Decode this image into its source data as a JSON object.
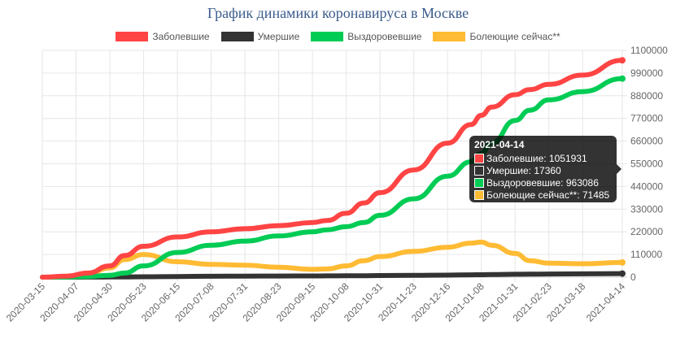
{
  "chart_data": {
    "type": "line",
    "title": "График динамики коронавируса в Москве",
    "x_tick_labels": [
      "2020-03-15",
      "2020-04-07",
      "2020-04-30",
      "2020-05-23",
      "2020-06-15",
      "2020-07-08",
      "2020-07-31",
      "2020-08-23",
      "2020-09-15",
      "2020-10-08",
      "2020-10-31",
      "2020-11-23",
      "2020-12-16",
      "2021-01-08",
      "2021-01-31",
      "2021-02-23",
      "2021-03-18",
      "2021-04-14"
    ],
    "y_tick_labels": [
      "0",
      "110000",
      "220000",
      "330000",
      "440000",
      "550000",
      "660000",
      "770000",
      "880000",
      "990000",
      "1100000"
    ],
    "ylim": [
      0,
      1100000
    ],
    "y_axis_position": "right",
    "grid": true,
    "legend_position": "top",
    "x_dates": [
      "2020-03-15",
      "2020-04-01",
      "2020-04-15",
      "2020-04-30",
      "2020-05-10",
      "2020-05-23",
      "2020-06-15",
      "2020-07-08",
      "2020-07-31",
      "2020-08-23",
      "2020-09-15",
      "2020-09-25",
      "2020-10-08",
      "2020-10-20",
      "2020-10-31",
      "2020-11-23",
      "2020-12-16",
      "2021-01-01",
      "2021-01-08",
      "2021-01-15",
      "2021-01-31",
      "2021-02-10",
      "2021-02-23",
      "2021-03-18",
      "2021-04-14"
    ],
    "series": [
      {
        "name": "Заболевшие",
        "color": "#ff4444",
        "values": [
          0,
          5000,
          20000,
          55000,
          105000,
          150000,
          195000,
          220000,
          235000,
          250000,
          265000,
          275000,
          310000,
          360000,
          410000,
          520000,
          650000,
          740000,
          785000,
          825000,
          885000,
          910000,
          935000,
          980000,
          1051931
        ]
      },
      {
        "name": "Умершие",
        "color": "#333333",
        "values": [
          0,
          20,
          200,
          700,
          1200,
          2000,
          3200,
          4500,
          5000,
          5500,
          6000,
          6300,
          6700,
          7200,
          7700,
          8800,
          10000,
          11300,
          12000,
          12700,
          14000,
          14600,
          15200,
          16200,
          17360
        ]
      },
      {
        "name": "Выздоровевшие",
        "color": "#00cc55",
        "values": [
          0,
          500,
          3000,
          9000,
          20000,
          55000,
          120000,
          155000,
          175000,
          200000,
          220000,
          230000,
          245000,
          265000,
          300000,
          380000,
          490000,
          560000,
          600000,
          650000,
          760000,
          810000,
          860000,
          900000,
          963086
        ]
      },
      {
        "name": "Болеющие сейчас**",
        "color": "#ffbb33",
        "values": [
          0,
          4500,
          17000,
          45000,
          85000,
          110000,
          75000,
          62000,
          58000,
          48000,
          38000,
          40000,
          55000,
          80000,
          100000,
          125000,
          145000,
          165000,
          170000,
          155000,
          115000,
          80000,
          68000,
          65000,
          71485
        ]
      }
    ]
  },
  "tooltip": {
    "title": "2021-04-14",
    "rows": [
      {
        "label": "Заболевшие: 1051931",
        "color": "#ff4444"
      },
      {
        "label": "Умершие: 17360",
        "color": "#333333"
      },
      {
        "label": "Выздоровевшие: 963086",
        "color": "#00cc55"
      },
      {
        "label": "Болеющие сейчас**: 71485",
        "color": "#ffbb33"
      }
    ]
  }
}
